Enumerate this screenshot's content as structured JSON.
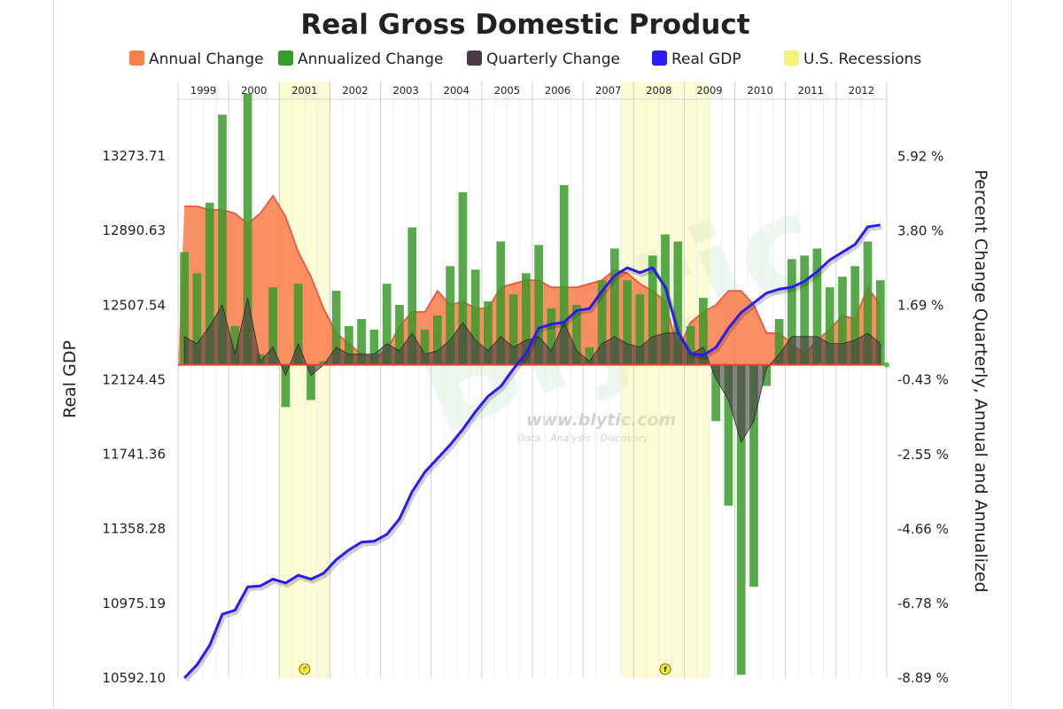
{
  "chart_data": {
    "type": "combo",
    "title": "Real Gross Domestic Product",
    "legend": [
      {
        "key": "annual",
        "label": "Annual Change",
        "color": "#fb7f4e"
      },
      {
        "key": "annualized",
        "label": "Annualized Change",
        "color": "#3a9a2b"
      },
      {
        "key": "quarterly",
        "label": "Quarterly Change",
        "color": "#4a3a45"
      },
      {
        "key": "gdp",
        "label": "Real GDP",
        "color": "#2b1bf0"
      },
      {
        "key": "recession",
        "label": "U.S. Recessions",
        "color": "#f4f27a"
      }
    ],
    "legend_position": "top",
    "years": [
      "1999",
      "2000",
      "2001",
      "2002",
      "2003",
      "2004",
      "2005",
      "2006",
      "2007",
      "2008",
      "2009",
      "2010",
      "2011",
      "2012"
    ],
    "quarters": [
      "1999 Q1",
      "1999 Q2",
      "1999 Q3",
      "1999 Q4",
      "2000 Q1",
      "2000 Q2",
      "2000 Q3",
      "2000 Q4",
      "2001 Q1",
      "2001 Q2",
      "2001 Q3",
      "2001 Q4",
      "2002 Q1",
      "2002 Q2",
      "2002 Q3",
      "2002 Q4",
      "2003 Q1",
      "2003 Q2",
      "2003 Q3",
      "2003 Q4",
      "2004 Q1",
      "2004 Q2",
      "2004 Q3",
      "2004 Q4",
      "2005 Q1",
      "2005 Q2",
      "2005 Q3",
      "2005 Q4",
      "2006 Q1",
      "2006 Q2",
      "2006 Q3",
      "2006 Q4",
      "2007 Q1",
      "2007 Q2",
      "2007 Q3",
      "2007 Q4",
      "2008 Q1",
      "2008 Q2",
      "2008 Q3",
      "2008 Q4",
      "2009 Q1",
      "2009 Q2",
      "2009 Q3",
      "2009 Q4",
      "2010 Q1",
      "2010 Q2",
      "2010 Q3",
      "2010 Q4",
      "2011 Q1",
      "2011 Q2",
      "2011 Q3",
      "2011 Q4",
      "2012 Q1",
      "2012 Q2",
      "2012 Q3",
      "2012 Q4"
    ],
    "left_axis": {
      "label": "Real GDP",
      "ticks": [
        "10592.10",
        "10975.19",
        "11358.28",
        "11741.36",
        "12124.45",
        "12507.54",
        "12890.63",
        "13273.71"
      ],
      "ylim": [
        10592.1,
        13656.8
      ]
    },
    "right_axis": {
      "label": "Percent Change Quarterly, Annual and Annualized",
      "ticks": [
        "-8.89 %",
        "-6.78 %",
        "-4.66 %",
        "-2.55 %",
        "-0.43 %",
        "1.69 %",
        "3.80 %",
        "5.92 %"
      ],
      "ylim": [
        -8.89,
        8.04
      ]
    },
    "series": [
      {
        "name": "Real GDP",
        "type": "line",
        "axis": "left",
        "values": [
          10592,
          10660,
          10760,
          10920,
          10940,
          11060,
          11065,
          11100,
          11080,
          11120,
          11100,
          11130,
          11200,
          11250,
          11290,
          11295,
          11330,
          11410,
          11550,
          11650,
          11720,
          11790,
          11870,
          11960,
          12040,
          12090,
          12180,
          12260,
          12390,
          12410,
          12420,
          12480,
          12490,
          12580,
          12660,
          12700,
          12675,
          12700,
          12600,
          12370,
          12260,
          12250,
          12290,
          12390,
          12470,
          12520,
          12570,
          12590,
          12600,
          12630,
          12680,
          12740,
          12780,
          12820,
          12910,
          12920
        ]
      },
      {
        "name": "Annual Change",
        "type": "area",
        "axis": "right",
        "values": [
          4.5,
          4.5,
          4.4,
          4.4,
          4.3,
          4.0,
          4.3,
          4.8,
          4.2,
          3.2,
          2.5,
          1.6,
          0.9,
          0.6,
          0.3,
          0.2,
          0.4,
          1.1,
          1.5,
          1.5,
          2.1,
          1.7,
          1.8,
          1.6,
          1.6,
          2.2,
          2.3,
          2.4,
          2.4,
          2.2,
          2.2,
          2.2,
          2.3,
          2.4,
          2.7,
          2.6,
          2.3,
          2.1,
          1.8,
          0.4,
          1.2,
          1.5,
          1.7,
          2.1,
          2.1,
          1.7,
          0.9,
          0.9,
          0.6,
          0.3,
          0.7,
          1.0,
          1.4,
          1.3,
          2.2,
          1.7
        ]
      },
      {
        "name": "Annualized Change",
        "type": "bar",
        "axis": "right",
        "values": [
          3.2,
          2.6,
          4.6,
          7.1,
          1.1,
          7.7,
          0.3,
          2.2,
          -1.2,
          2.3,
          -1.0,
          0.1,
          2.1,
          1.1,
          1.3,
          1.0,
          2.3,
          1.7,
          3.9,
          1.0,
          1.4,
          2.8,
          4.9,
          2.7,
          1.8,
          3.5,
          2.0,
          2.6,
          3.4,
          1.6,
          5.1,
          1.7,
          0.5,
          2.4,
          3.3,
          2.4,
          2.0,
          3.1,
          3.7,
          3.5,
          1.1,
          1.9,
          -1.6,
          -4.0,
          -8.8,
          -6.3,
          -0.6,
          1.3,
          3.0,
          3.1,
          3.3,
          2.2,
          2.5,
          2.8,
          3.5,
          2.4
        ]
      },
      {
        "name": "Quarterly Change",
        "type": "area",
        "axis": "right",
        "values": [
          0.8,
          0.6,
          1.1,
          1.7,
          0.3,
          1.9,
          0.1,
          0.5,
          -0.3,
          0.6,
          -0.3,
          0.0,
          0.5,
          0.3,
          0.3,
          0.3,
          0.6,
          0.4,
          0.9,
          0.3,
          0.4,
          0.7,
          1.2,
          0.7,
          0.4,
          0.8,
          0.5,
          0.7,
          0.8,
          0.4,
          1.2,
          0.4,
          0.1,
          0.6,
          0.8,
          0.6,
          0.5,
          0.8,
          0.9,
          0.9,
          0.3,
          0.5,
          -0.4,
          -1.0,
          -2.2,
          -1.6,
          -0.1,
          0.3,
          0.8,
          0.8,
          0.8,
          0.6,
          0.6,
          0.7,
          0.9,
          0.6
        ]
      },
      {
        "name": "U.S. Recessions",
        "type": "band",
        "ranges": [
          [
            "2001 Q1",
            "2001 Q4"
          ],
          [
            "2007 Q4",
            "2009 Q2"
          ]
        ]
      }
    ],
    "grid": true,
    "watermark": {
      "brand": "Blytic",
      "url": "www.blytic.com",
      "tagline": "Data - Analysis - Discovery"
    },
    "flag_symbol": "f"
  }
}
